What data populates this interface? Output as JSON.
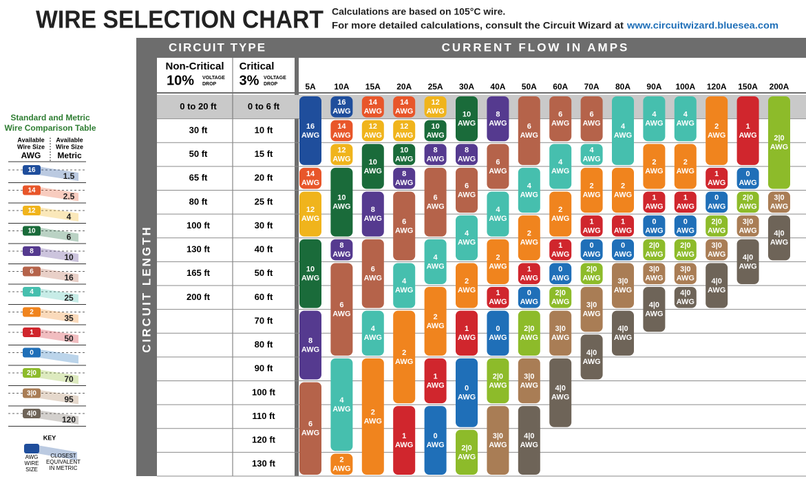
{
  "header": {
    "title": "WIRE SELECTION CHART",
    "note_1": "Calculations are based on 105°C wire.",
    "note_2": "For more detailed calculations, consult the Circuit Wizard at",
    "link": "www.circuitwizard.bluesea.com"
  },
  "comparison": {
    "title": [
      "Standard and Metric",
      "Wire Comparison Table"
    ],
    "awg_header": [
      "Available",
      "Wire Size",
      "AWG"
    ],
    "metric_header": [
      "Available",
      "Wire Size",
      "Metric"
    ],
    "rows": [
      {
        "awg": "16",
        "metric": "1.5",
        "color": "#1f4e9c"
      },
      {
        "awg": "14",
        "metric": "2.5",
        "color": "#e8562a"
      },
      {
        "awg": "12",
        "metric": "4",
        "color": "#f0b41c"
      },
      {
        "awg": "10",
        "metric": "6",
        "color": "#1a6b3a"
      },
      {
        "awg": "8",
        "metric": "10",
        "color": "#553a8f"
      },
      {
        "awg": "6",
        "metric": "16",
        "color": "#b5634a"
      },
      {
        "awg": "4",
        "metric": "25",
        "color": "#46bfae"
      },
      {
        "awg": "2",
        "metric": "35",
        "color": "#f0841e"
      },
      {
        "awg": "1",
        "metric": "50",
        "color": "#d0262d"
      },
      {
        "awg": "0",
        "metric": null,
        "color": "#1f6fb8"
      },
      {
        "awg": "2|0",
        "metric": "70",
        "color": "#8dbb2a"
      },
      {
        "awg": "3|0",
        "metric": "95",
        "color": "#a97d55"
      },
      {
        "awg": "4|0",
        "metric": "120",
        "color": "#6e6458"
      }
    ],
    "key": {
      "title": "KEY",
      "awg_label": [
        "AWG",
        "WIRE",
        "SIZE"
      ],
      "metric_label": [
        "CLOSEST",
        "EQUIVALENT",
        "IN METRIC"
      ]
    }
  },
  "chart": {
    "circuit_type": "CIRCUIT TYPE",
    "current_flow": "CURRENT FLOW IN AMPS",
    "circuit_length": "CIRCUIT LENGTH",
    "non_critical": {
      "name": "Non-Critical",
      "pct": "10%",
      "drop": [
        "VOLTAGE",
        "DROP"
      ]
    },
    "critical": {
      "name": "Critical",
      "pct": "3%",
      "drop": [
        "VOLTAGE",
        "DROP"
      ]
    },
    "non_critical_lengths": [
      "0 to 20 ft",
      "30 ft",
      "50 ft",
      "65 ft",
      "80 ft",
      "100 ft",
      "130 ft",
      "165 ft",
      "200 ft"
    ],
    "critical_lengths": [
      "0 to 6 ft",
      "10 ft",
      "15 ft",
      "20 ft",
      "25 ft",
      "30 ft",
      "40 ft",
      "50 ft",
      "60 ft",
      "70 ft",
      "80 ft",
      "90 ft",
      "100 ft",
      "110 ft",
      "120 ft",
      "130 ft"
    ],
    "amps": [
      "5A",
      "10A",
      "15A",
      "20A",
      "25A",
      "30A",
      "40A",
      "50A",
      "60A",
      "70A",
      "80A",
      "90A",
      "100A",
      "120A",
      "150A",
      "200A"
    ],
    "unit": "AWG",
    "columns": [
      [
        "16",
        "16",
        "16",
        "14",
        "12",
        "12",
        "10",
        "10",
        "10",
        "8",
        "8",
        "8",
        "6",
        "6",
        "6",
        "6"
      ],
      [
        "16",
        "14",
        "12",
        "10",
        "10",
        "10",
        "8",
        "6",
        "6",
        "6",
        "6",
        "4",
        "4",
        "4",
        "4",
        "2"
      ],
      [
        "14",
        "12",
        "10",
        "10",
        "8",
        "8",
        "6",
        "6",
        "6",
        "4",
        "4",
        "2",
        "2",
        "2",
        "2",
        "2"
      ],
      [
        "14",
        "12",
        "10",
        "8",
        "6",
        "6",
        "6",
        "4",
        "4",
        "2",
        "2",
        "2",
        "2",
        "1",
        "1",
        "1"
      ],
      [
        "12",
        "10",
        "8",
        "6",
        "6",
        "6",
        "4",
        "4",
        "2",
        "2",
        "2",
        "1",
        "1",
        "0",
        "0",
        "0"
      ],
      [
        "10",
        "10",
        "8",
        "6",
        "6",
        "4",
        "4",
        "2",
        "2",
        "1",
        "1",
        "0",
        "0",
        "0",
        "2|0",
        "2|0"
      ],
      [
        "8",
        "8",
        "6",
        "6",
        "4",
        "4",
        "2",
        "2",
        "1",
        "0",
        "0",
        "2|0",
        "2|0",
        "3|0",
        "3|0",
        "3|0"
      ],
      [
        "6",
        "6",
        "6",
        "4",
        "4",
        "2",
        "2",
        "1",
        "0",
        "2|0",
        "2|0",
        "3|0",
        "3|0",
        "4|0",
        "4|0",
        "4|0"
      ],
      [
        "6",
        "6",
        "4",
        "4",
        "2",
        "2",
        "1",
        "0",
        "2|0",
        "3|0",
        "3|0",
        "4|0",
        "4|0",
        "4|0",
        null,
        null
      ],
      [
        "6",
        "6",
        "4",
        "2",
        "2",
        "1",
        "0",
        "2|0",
        "3|0",
        "3|0",
        "4|0",
        "4|0",
        null,
        null,
        null,
        null
      ],
      [
        "4",
        "4",
        "4",
        "2",
        "2",
        "1",
        "0",
        "3|0",
        "3|0",
        "4|0",
        "4|0",
        null,
        null,
        null,
        null,
        null
      ],
      [
        "4",
        "4",
        "2",
        "2",
        "1",
        "0",
        "2|0",
        "3|0",
        "4|0",
        "4|0",
        null,
        null,
        null,
        null,
        null,
        null
      ],
      [
        "4",
        "4",
        "2",
        "2",
        "1",
        "0",
        "2|0",
        "3|0",
        "4|0",
        null,
        null,
        null,
        null,
        null,
        null,
        null
      ],
      [
        "2",
        "2",
        "2",
        "1",
        "0",
        "2|0",
        "3|0",
        "4|0",
        "4|0",
        null,
        null,
        null,
        null,
        null,
        null,
        null
      ],
      [
        "1",
        "1",
        "1",
        "0",
        "2|0",
        "3|0",
        "4|0",
        "4|0",
        null,
        null,
        null,
        null,
        null,
        null,
        null,
        null
      ],
      [
        "2|0",
        "2|0",
        "2|0",
        "2|0",
        "3|0",
        "4|0",
        "4|0",
        null,
        null,
        null,
        null,
        null,
        null,
        null,
        null,
        null
      ]
    ]
  }
}
